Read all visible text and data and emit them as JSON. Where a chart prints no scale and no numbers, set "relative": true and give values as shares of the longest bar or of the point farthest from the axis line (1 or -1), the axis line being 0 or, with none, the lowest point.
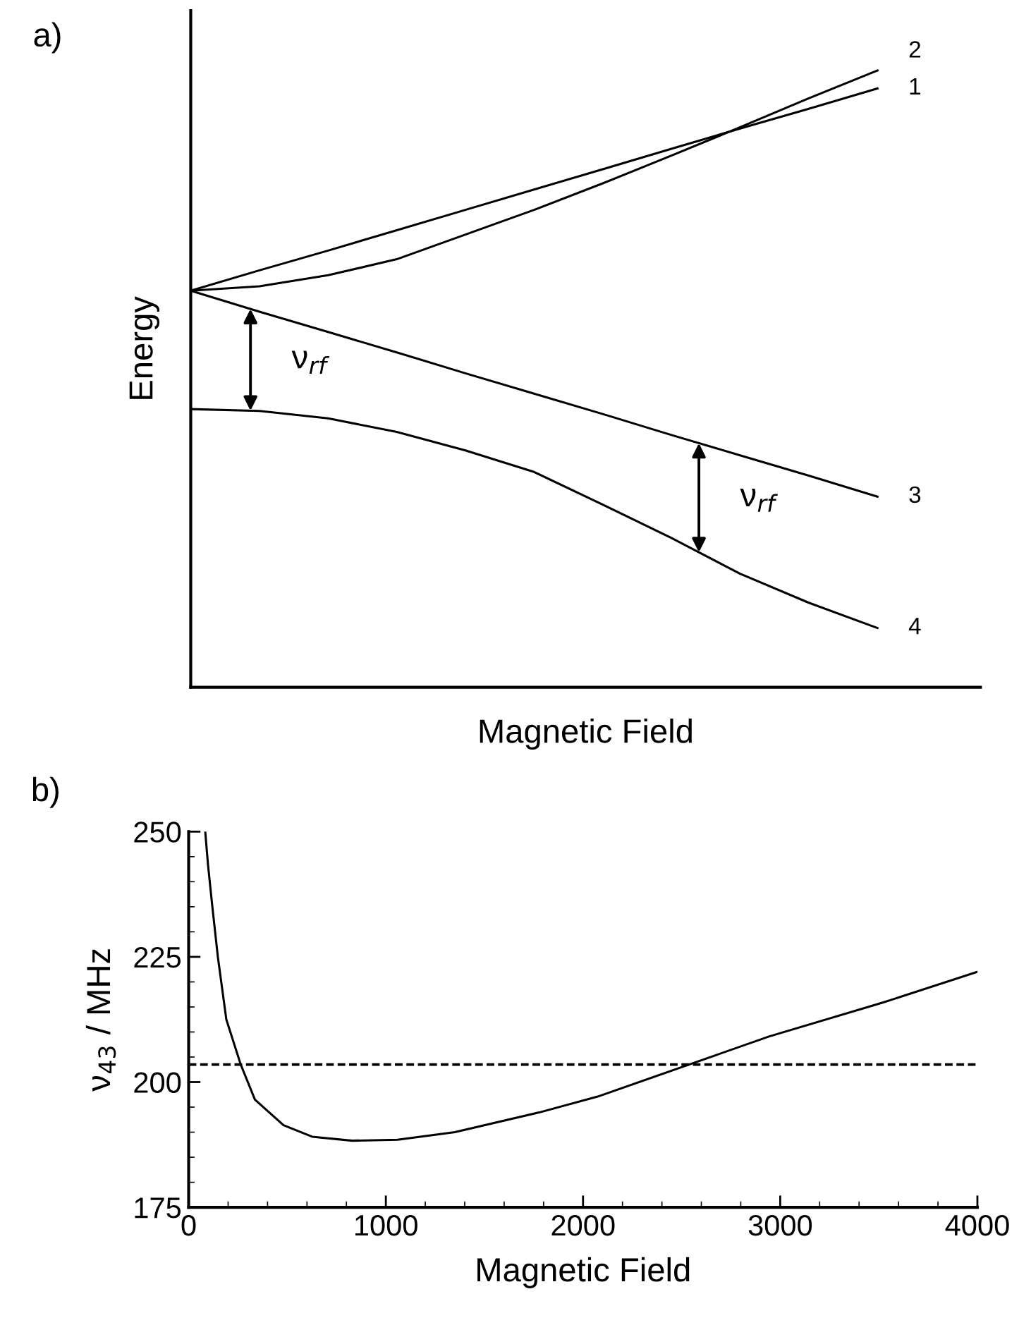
{
  "chart_data": [
    {
      "type": "line",
      "title": "a)",
      "xlabel": "Magnetic Field",
      "ylabel": "Energy",
      "relative": true,
      "grid": false,
      "legend": false,
      "marker": "none",
      "line_style": "solid",
      "categories": [
        null,
        null,
        null,
        null,
        null,
        null,
        null,
        null,
        null,
        null,
        null
      ],
      "series": [
        {
          "name": "1",
          "color": "#000000",
          "values": [
            0.643,
            0.676,
            0.708,
            0.741,
            0.774,
            0.807,
            0.84,
            0.873,
            0.906,
            0.938,
            0.971
          ]
        },
        {
          "name": "2",
          "color": "#000000",
          "values": [
            0.643,
            0.65,
            0.668,
            0.694,
            0.734,
            0.774,
            0.817,
            0.862,
            0.908,
            0.955,
            1.0
          ]
        },
        {
          "name": "3",
          "color": "#000000",
          "values": [
            0.643,
            0.609,
            0.576,
            0.543,
            0.509,
            0.476,
            0.443,
            0.409,
            0.376,
            0.343,
            0.309
          ]
        },
        {
          "name": "4",
          "color": "#000000",
          "values": [
            0.451,
            0.448,
            0.436,
            0.414,
            0.384,
            0.349,
            0.296,
            0.242,
            0.184,
            0.137,
            0.096
          ]
        }
      ],
      "annotations": [
        "ν$_{rf}$",
        "ν$_{rf}$"
      ]
    },
    {
      "type": "line",
      "title": "b)",
      "xlabel": "Magnetic Field",
      "ylabel": "ν$_{43}$ / MHz",
      "grid": false,
      "legend": false,
      "marker": "none",
      "line_style": "solid",
      "xlim": [
        0,
        4000
      ],
      "xticks": [
        0,
        1000,
        2000,
        3000,
        4000
      ],
      "ylim": [
        175,
        250
      ],
      "yticks": [
        175,
        200,
        225,
        250
      ],
      "x": [
        84,
        98,
        119,
        148,
        191,
        264,
        336,
        481,
        626,
        829,
        1060,
        1350,
        1784,
        2074,
        2538,
        2943,
        3523,
        4000
      ],
      "series": [
        {
          "color": "#000000",
          "values": [
            250,
            243.4,
            235.4,
            225,
            212.5,
            203.5,
            196.5,
            191.4,
            189.1,
            188.3,
            188.5,
            190,
            194,
            197.1,
            203.5,
            209.1,
            215.9,
            222.0
          ]
        }
      ],
      "ref_lines": [
        {
          "axis": "y",
          "value": 203.5,
          "color": "#000000",
          "line_style": "dashed"
        }
      ]
    }
  ]
}
